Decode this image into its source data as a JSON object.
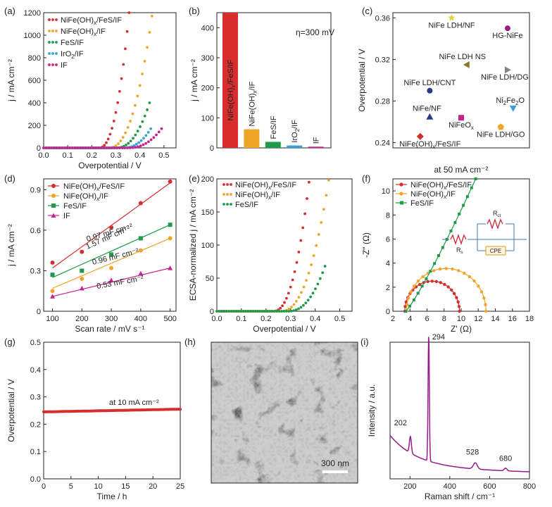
{
  "colors": {
    "red": "#d62d2d",
    "orange": "#eea52a",
    "green": "#1e9a4a",
    "blue": "#3a9fd6",
    "magenta": "#c8228e",
    "olive": "#8a7a28",
    "gold": "#e6d23a",
    "purple": "#9a1a8a",
    "grey": "#7a8a8a",
    "navy": "#2a3a8a",
    "axis": "#222222"
  },
  "chart_data": [
    {
      "panel": "a",
      "type": "scatter",
      "panel_label": "(a)",
      "xlabel": "Overpotential / V",
      "ylabel": "j / mA cm⁻²",
      "xlim": [
        0,
        0.55
      ],
      "ylim": [
        0,
        1200
      ],
      "xticks": [
        0.0,
        0.1,
        0.2,
        0.3,
        0.4,
        0.5
      ],
      "xticklabels": [
        "0.0",
        "0.1",
        "0.2",
        "0.3",
        "0.4",
        "0.5"
      ],
      "yticks": [
        0,
        200,
        400,
        600,
        800,
        1000,
        1200
      ],
      "yticklabels": [
        "0",
        "200",
        "400",
        "600",
        "800",
        "1000",
        "1200"
      ],
      "legend_position": "top-left",
      "series": [
        {
          "name": "NiFe(OH)x/FeS/IF",
          "color": "red",
          "onset": 0.23,
          "end": 0.355,
          "jmax": 1200
        },
        {
          "name": "NiFe(OH)x/IF",
          "color": "orange",
          "onset": 0.27,
          "end": 0.45,
          "jmax": 1170
        },
        {
          "name": "FeS/IF",
          "color": "green",
          "onset": 0.3,
          "end": 0.44,
          "jmax": 400
        },
        {
          "name": "IrO2/IF",
          "color": "blue",
          "onset": 0.33,
          "end": 0.445,
          "jmax": 170
        },
        {
          "name": "IF",
          "color": "magenta",
          "onset": 0.35,
          "end": 0.49,
          "jmax": 170
        }
      ]
    },
    {
      "panel": "b",
      "type": "bar",
      "panel_label": "(b)",
      "ylabel": "j / mA cm⁻²",
      "annotation": "η=300 mV",
      "ylim": [
        0,
        450
      ],
      "yticks": [
        0,
        100,
        200,
        300,
        400
      ],
      "yticklabels": [
        "0",
        "100",
        "200",
        "300",
        "400"
      ],
      "categories": [
        "NiFe(OH)x/FeS/IF",
        "NiFe(OH)x/IF",
        "FeS/IF",
        "IrO2/IF",
        "IF"
      ],
      "values": [
        450,
        62,
        20,
        8,
        4
      ],
      "bar_colors": [
        "red",
        "orange",
        "green",
        "blue",
        "magenta"
      ]
    },
    {
      "panel": "c",
      "type": "scatter",
      "panel_label": "(c)",
      "ylabel": "Overpotential / V",
      "ylim": [
        0.235,
        0.365
      ],
      "yticks": [
        0.24,
        0.28,
        0.32,
        0.36
      ],
      "yticklabels": [
        "0.24",
        "0.28",
        "0.32",
        "0.36"
      ],
      "points": [
        {
          "label": "NiFe LDH/NF",
          "x": 0.43,
          "y": 0.36,
          "marker": "star",
          "color": "gold"
        },
        {
          "label": "HG-NiFe",
          "x": 0.84,
          "y": 0.35,
          "marker": "circle",
          "color": "purple"
        },
        {
          "label": "NiFe LDH NS",
          "x": 0.54,
          "y": 0.315,
          "marker": "triangle-left",
          "color": "olive"
        },
        {
          "label": "NiFe LDH/DG",
          "x": 0.84,
          "y": 0.31,
          "marker": "triangle-right",
          "color": "grey"
        },
        {
          "label": "NiFe LDH/CNT",
          "x": 0.27,
          "y": 0.29,
          "marker": "circle",
          "color": "navy"
        },
        {
          "label": "Ni2Fe2O",
          "x": 0.88,
          "y": 0.273,
          "marker": "triangle-down",
          "color": "blue"
        },
        {
          "label": "NiFe/NF",
          "x": 0.27,
          "y": 0.265,
          "marker": "triangle-up",
          "color": "navy"
        },
        {
          "label": "NiFeOx",
          "x": 0.5,
          "y": 0.264,
          "marker": "square",
          "color": "magenta"
        },
        {
          "label": "NiFe LDH/GO",
          "x": 0.79,
          "y": 0.255,
          "marker": "pentagon",
          "color": "orange"
        },
        {
          "label": "NiFe(OH)x/FeS/IF",
          "x": 0.2,
          "y": 0.246,
          "marker": "diamond",
          "color": "red"
        }
      ]
    },
    {
      "panel": "d",
      "type": "scatter",
      "panel_label": "(d)",
      "xlabel": "Scan rate / mV s⁻¹",
      "ylabel": "j / mA cm⁻²",
      "xlim": [
        70,
        520
      ],
      "ylim": [
        0,
        0.98
      ],
      "xticks": [
        100,
        200,
        300,
        400,
        500
      ],
      "xticklabels": [
        "100",
        "200",
        "300",
        "400",
        "500"
      ],
      "yticks": [
        0,
        0.3,
        0.6,
        0.9
      ],
      "yticklabels": [
        "0",
        "0.3",
        "0.6",
        "0.9"
      ],
      "x": [
        100,
        200,
        300,
        400,
        500
      ],
      "series": [
        {
          "name": "NiFe(OH)x/FeS/IF",
          "color": "red",
          "marker": "circle",
          "values": [
            0.36,
            0.44,
            0.62,
            0.8,
            0.96
          ],
          "fit": [
            0.32,
            0.95
          ],
          "annotation": "1.57 mF cm⁻²"
        },
        {
          "name": "NiFe(OH)x/IF",
          "color": "orange",
          "marker": "circle",
          "values": [
            0.15,
            0.24,
            0.32,
            0.45,
            0.54
          ],
          "fit": [
            0.17,
            0.54
          ],
          "annotation": "0.96 mF cm⁻²"
        },
        {
          "name": "FeS/IF",
          "color": "green",
          "marker": "square",
          "values": [
            0.27,
            0.3,
            0.42,
            0.54,
            0.64
          ],
          "fit": [
            0.25,
            0.64
          ],
          "annotation": "0.97 mF cm⁻²"
        },
        {
          "name": "IF",
          "color": "magenta",
          "marker": "triangle",
          "values": [
            0.11,
            0.17,
            0.23,
            0.28,
            0.32
          ],
          "fit": [
            0.11,
            0.32
          ],
          "annotation": "0.53 mF cm⁻²"
        }
      ]
    },
    {
      "panel": "e",
      "type": "scatter",
      "panel_label": "(e)",
      "xlabel": "Overpotential / V",
      "ylabel": "ECSA-normalized j / mA cm⁻²",
      "xlim": [
        0,
        0.55
      ],
      "ylim": [
        0,
        200
      ],
      "xticks": [
        0.0,
        0.1,
        0.2,
        0.3,
        0.4,
        0.5
      ],
      "xticklabels": [
        "0.0",
        "0.1",
        "0.2",
        "0.3",
        "0.4",
        "0.5"
      ],
      "yticks": [
        0,
        50,
        100,
        150,
        200
      ],
      "yticklabels": [
        "0",
        "50",
        "100",
        "150",
        "200"
      ],
      "series": [
        {
          "name": "NiFe(OH)x/FeS/IF",
          "color": "red",
          "onset": 0.23,
          "end": 0.375,
          "jmax": 195
        },
        {
          "name": "NiFe(OH)x/IF",
          "color": "orange",
          "onset": 0.26,
          "end": 0.455,
          "jmax": 198
        },
        {
          "name": "FeS/IF",
          "color": "green",
          "onset": 0.29,
          "end": 0.44,
          "jmax": 68
        }
      ]
    },
    {
      "panel": "f",
      "type": "scatter",
      "panel_label": "(f)",
      "title": "at 50 mA cm⁻²",
      "xlabel": "Z' (Ω)",
      "ylabel": "-Z\" (Ω)",
      "xlim": [
        2,
        18
      ],
      "ylim": [
        0,
        11
      ],
      "xticks": [
        2,
        4,
        6,
        8,
        10,
        12,
        14,
        16,
        18
      ],
      "xticklabels": [
        "2",
        "4",
        "6",
        "8",
        "10",
        "12",
        "14",
        "16",
        "18"
      ],
      "yticks": [
        0,
        2,
        4,
        6,
        8,
        10
      ],
      "yticklabels": [
        "0",
        "2",
        "4",
        "6",
        "8",
        "10"
      ],
      "series": [
        {
          "name": "NiFe(OH)x/FeS/IF",
          "color": "red",
          "arc_start": 3.4,
          "arc_end": 9.8,
          "peak": 2.5
        },
        {
          "name": "NiFe(OH)x/IF",
          "color": "orange",
          "arc_start": 3.6,
          "arc_end": 12.9,
          "peak": 3.55
        },
        {
          "name": "FeS/IF",
          "color": "green",
          "start": 3.5,
          "end_x": 11.7,
          "end_y": 11
        }
      ],
      "circuit": {
        "labels": [
          "Rs",
          "Rct",
          "CPE"
        ]
      }
    },
    {
      "panel": "g",
      "type": "line",
      "panel_label": "(g)",
      "xlabel": "Time / h",
      "ylabel": "Overpotential / V",
      "xlim": [
        0,
        25
      ],
      "ylim": [
        0,
        0.5
      ],
      "xticks": [
        0,
        5,
        10,
        15,
        20,
        25
      ],
      "xticklabels": [
        "0",
        "5",
        "10",
        "15",
        "20",
        "25"
      ],
      "yticks": [
        0,
        0.1,
        0.2,
        0.3,
        0.4,
        0.5
      ],
      "yticklabels": [
        "0.0",
        "0.1",
        "0.2",
        "0.3",
        "0.4",
        "0.5"
      ],
      "annotation": "at 10 mA cm⁻²",
      "series": [
        {
          "name": "NiFe(OH)x/FeS/IF",
          "color": "red",
          "start": 0.245,
          "end": 0.255
        }
      ]
    },
    {
      "panel": "h",
      "type": "image",
      "panel_label": "(h)",
      "scale_bar": "300 nm"
    },
    {
      "panel": "i",
      "type": "line",
      "panel_label": "(i)",
      "xlabel": "Raman shift / cm⁻¹",
      "ylabel": "Intensity / a.u.",
      "xlim": [
        100,
        800
      ],
      "xticks": [
        200,
        400,
        600,
        800
      ],
      "xticklabels": [
        "200",
        "400",
        "600",
        "800"
      ],
      "peaks": [
        {
          "x": 202,
          "label": "202"
        },
        {
          "x": 294,
          "label": "294"
        },
        {
          "x": 528,
          "label": "528"
        },
        {
          "x": 680,
          "label": "680"
        }
      ],
      "color": "purple"
    }
  ],
  "labels": {
    "a_leg": [
      "NiFe(OH)x/FeS/IF",
      "NiFe(OH)x/IF",
      "FeS/IF",
      "IrO2/IF",
      "IF"
    ],
    "d_leg": [
      "NiFe(OH)x/FeS/IF",
      "NiFe(OH)x/IF",
      "FeS/IF",
      "IF"
    ],
    "e_leg": [
      "NiFe(OH)x/FeS/IF",
      "NiFe(OH)x/IF",
      "FeS/IF"
    ],
    "f_leg": [
      "NiFe(OH)x/FeS/IF",
      "NiFe(OH)x/IF",
      "FeS/IF"
    ]
  }
}
